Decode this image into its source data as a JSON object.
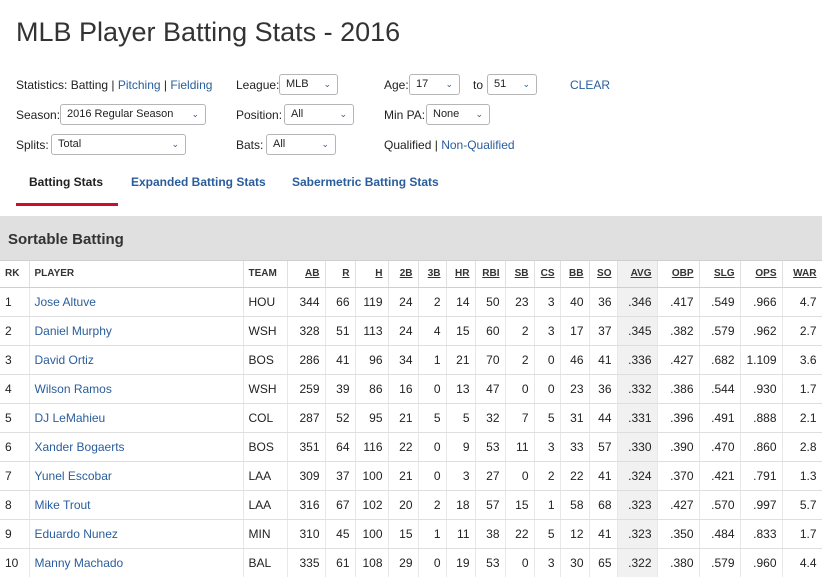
{
  "page_title": "MLB Player Batting Stats - 2016",
  "filters": {
    "statistics_label": "Statistics:",
    "stat_current": "Batting",
    "stat_sep": "|",
    "stat_pitching": "Pitching",
    "stat_fielding": "Fielding",
    "league_label": "League:",
    "league_value": "MLB",
    "age_label": "Age:",
    "age_from": "17",
    "age_to_label": "to",
    "age_to": "51",
    "clear": "CLEAR",
    "season_label": "Season:",
    "season_value": "2016 Regular Season",
    "position_label": "Position:",
    "position_value": "All",
    "minpa_label": "Min PA:",
    "minpa_value": "None",
    "splits_label": "Splits:",
    "splits_value": "Total",
    "bats_label": "Bats:",
    "bats_value": "All",
    "qualified": "Qualified",
    "qual_sep": "|",
    "non_qualified": "Non-Qualified",
    "chevron": "⌄"
  },
  "tabs": [
    "Batting Stats",
    "Expanded Batting Stats",
    "Sabermetric Batting Stats"
  ],
  "section_title": "Sortable Batting",
  "table": {
    "columns": [
      "RK",
      "PLAYER",
      "TEAM",
      "AB",
      "R",
      "H",
      "2B",
      "3B",
      "HR",
      "RBI",
      "SB",
      "CS",
      "BB",
      "SO",
      "AVG",
      "OBP",
      "SLG",
      "OPS",
      "WAR"
    ],
    "rows": [
      [
        "1",
        "Jose Altuve",
        "HOU",
        "344",
        "66",
        "119",
        "24",
        "2",
        "14",
        "50",
        "23",
        "3",
        "40",
        "36",
        ".346",
        ".417",
        ".549",
        ".966",
        "4.7"
      ],
      [
        "2",
        "Daniel Murphy",
        "WSH",
        "328",
        "51",
        "113",
        "24",
        "4",
        "15",
        "60",
        "2",
        "3",
        "17",
        "37",
        ".345",
        ".382",
        ".579",
        ".962",
        "2.7"
      ],
      [
        "3",
        "David Ortiz",
        "BOS",
        "286",
        "41",
        "96",
        "34",
        "1",
        "21",
        "70",
        "2",
        "0",
        "46",
        "41",
        ".336",
        ".427",
        ".682",
        "1.109",
        "3.6"
      ],
      [
        "4",
        "Wilson Ramos",
        "WSH",
        "259",
        "39",
        "86",
        "16",
        "0",
        "13",
        "47",
        "0",
        "0",
        "23",
        "36",
        ".332",
        ".386",
        ".544",
        ".930",
        "1.7"
      ],
      [
        "5",
        "DJ LeMahieu",
        "COL",
        "287",
        "52",
        "95",
        "21",
        "5",
        "5",
        "32",
        "7",
        "5",
        "31",
        "44",
        ".331",
        ".396",
        ".491",
        ".888",
        "2.1"
      ],
      [
        "6",
        "Xander Bogaerts",
        "BOS",
        "351",
        "64",
        "116",
        "22",
        "0",
        "9",
        "53",
        "11",
        "3",
        "33",
        "57",
        ".330",
        ".390",
        ".470",
        ".860",
        "2.8"
      ],
      [
        "7",
        "Yunel Escobar",
        "LAA",
        "309",
        "37",
        "100",
        "21",
        "0",
        "3",
        "27",
        "0",
        "2",
        "22",
        "41",
        ".324",
        ".370",
        ".421",
        ".791",
        "1.3"
      ],
      [
        "8",
        "Mike Trout",
        "LAA",
        "316",
        "67",
        "102",
        "20",
        "2",
        "18",
        "57",
        "15",
        "1",
        "58",
        "68",
        ".323",
        ".427",
        ".570",
        ".997",
        "5.7"
      ],
      [
        "9",
        "Eduardo Nunez",
        "MIN",
        "310",
        "45",
        "100",
        "15",
        "1",
        "11",
        "38",
        "22",
        "5",
        "12",
        "41",
        ".323",
        ".350",
        ".484",
        ".833",
        "1.7"
      ],
      [
        "10",
        "Manny Machado",
        "BAL",
        "335",
        "61",
        "108",
        "29",
        "0",
        "19",
        "53",
        "0",
        "3",
        "30",
        "65",
        ".322",
        ".380",
        ".579",
        ".960",
        "4.4"
      ]
    ]
  }
}
